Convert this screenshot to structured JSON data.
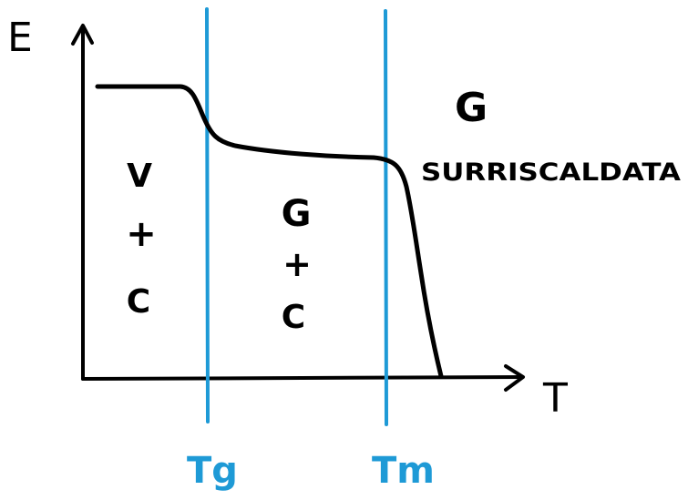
{
  "axes": {
    "y_label": "E",
    "x_label": "T"
  },
  "markers": {
    "glass_transition": "Tg",
    "melting": "Tm"
  },
  "regions": {
    "left": {
      "line1": "V",
      "line2": "+",
      "line3": "C"
    },
    "middle": {
      "line1": "G",
      "line2": "+",
      "line3": "C"
    },
    "right": {
      "line1": "G",
      "line2": "SURRISCALDATA"
    }
  },
  "colors": {
    "ink": "#000000",
    "marker": "#1e9ad6"
  }
}
